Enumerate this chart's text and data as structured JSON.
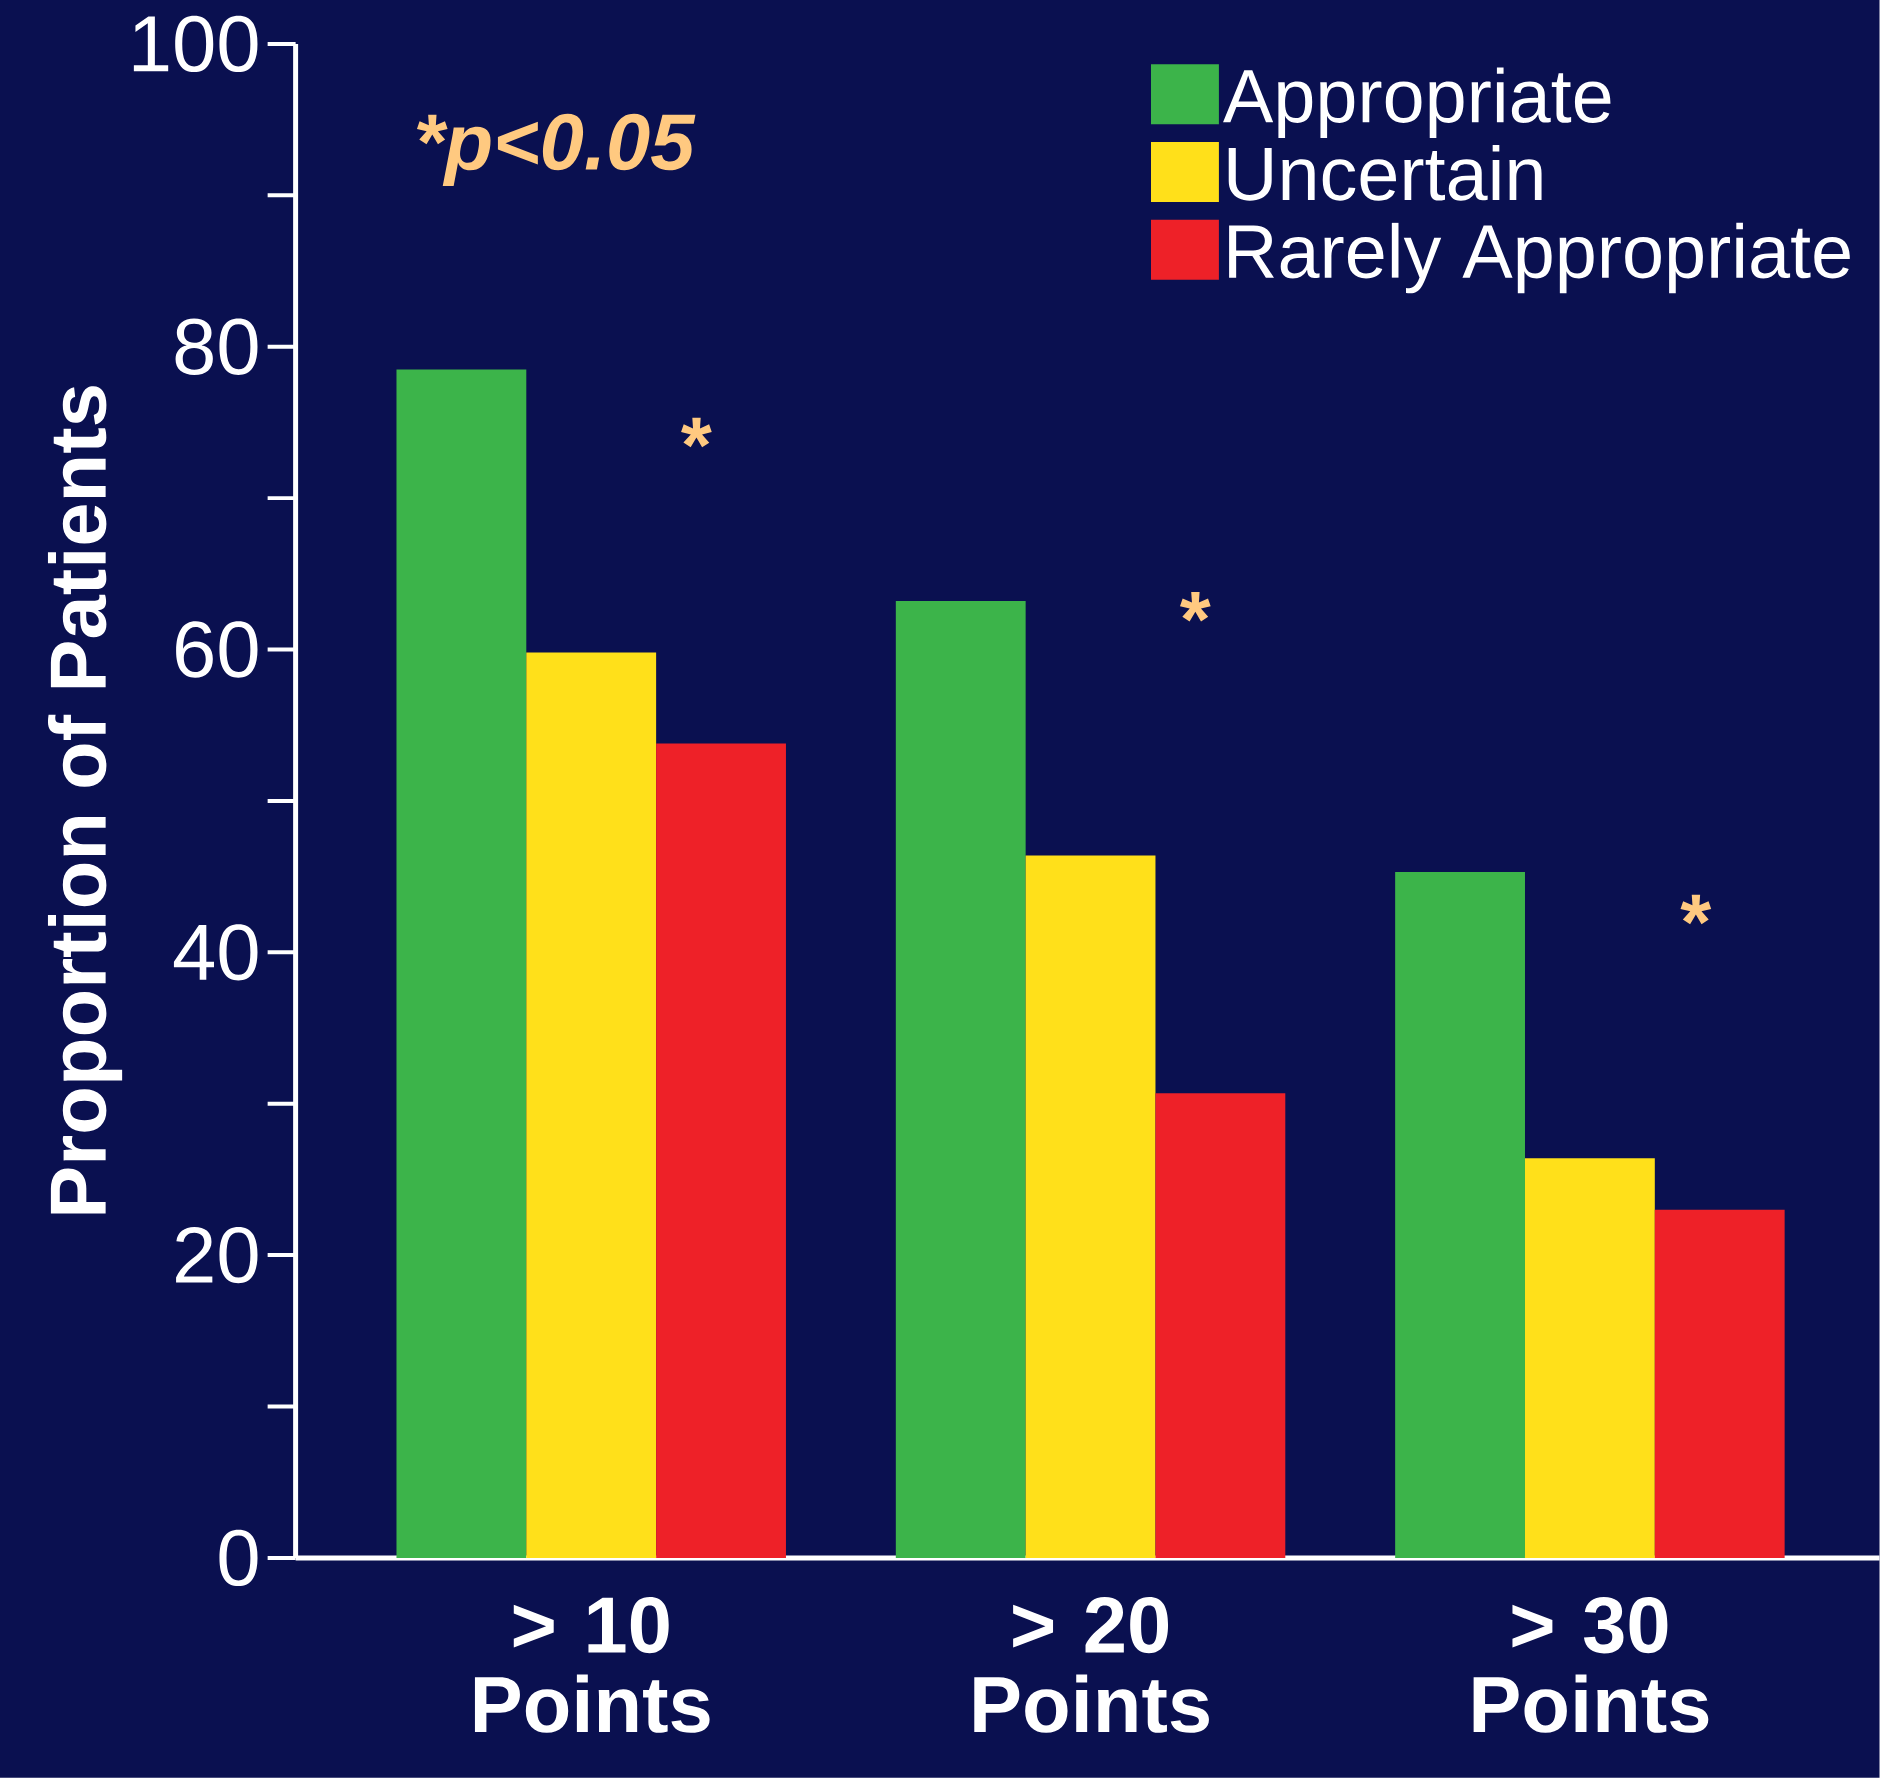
{
  "chart_data": {
    "type": "bar",
    "ylabel": "Proportion of Patients",
    "categories": [
      "> 10 Points",
      "> 20 Points",
      "> 30 Points"
    ],
    "series": [
      {
        "name": "Appropriate",
        "color": "#3cb44a",
        "values": [
          78.5,
          63.2,
          45.3
        ]
      },
      {
        "name": "Uncertain",
        "color": "#ffe01a",
        "values": [
          59.8,
          46.4,
          26.4
        ]
      },
      {
        "name": "Rarely Appropriate",
        "color": "#ee2128",
        "values": [
          53.8,
          30.7,
          23
        ]
      }
    ],
    "ylim": [
      0,
      100
    ],
    "yticks": [
      0,
      {
        "value": 10,
        "label": null
      },
      20,
      {
        "value": 30,
        "label": null
      },
      40,
      {
        "value": 50,
        "label": null
      },
      60,
      {
        "value": 70,
        "label": null
      },
      80,
      {
        "value": 90,
        "label": null
      },
      100
    ],
    "legend": "top right",
    "annotations": [
      "*p<0.05",
      "*",
      "*",
      "*"
    ]
  }
}
